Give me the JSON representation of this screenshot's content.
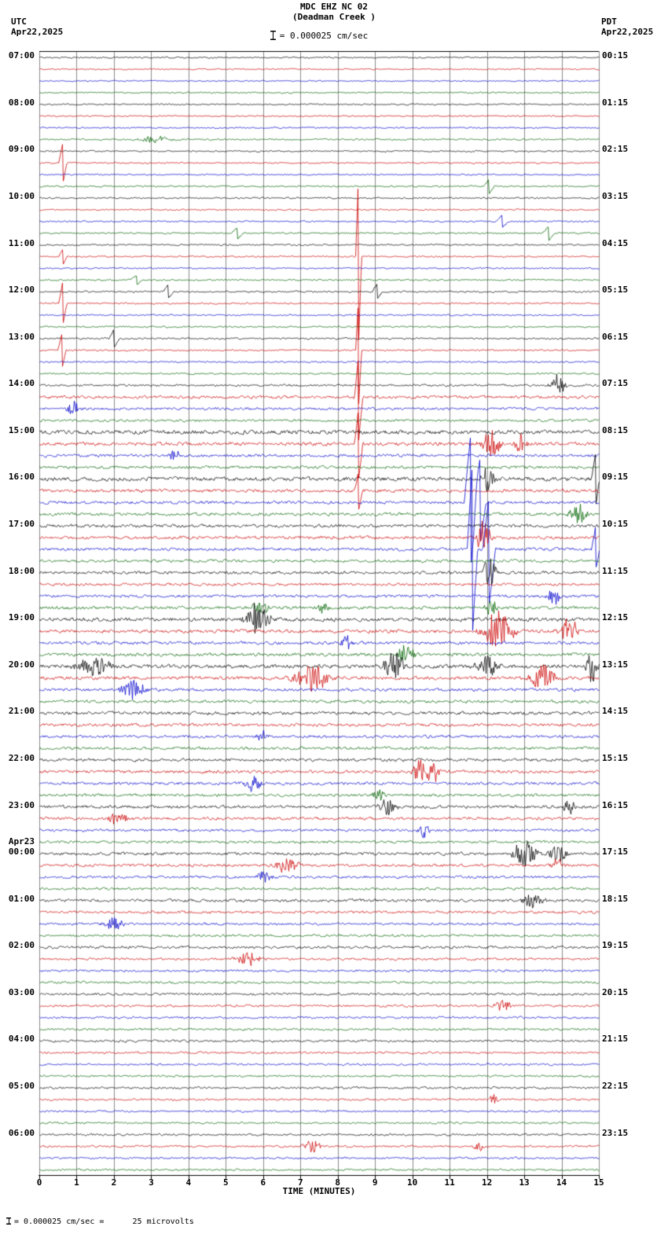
{
  "header": {
    "station": "MDC EHZ NC 02",
    "location": "(Deadman Creek )",
    "scale_label": "= 0.000025 cm/sec",
    "utc_label": "UTC",
    "utc_date": "Apr22,2025",
    "pdt_label": "PDT",
    "pdt_date": "Apr22,2025"
  },
  "footer": {
    "xaxis_title": "TIME (MINUTES)",
    "note": "= 0.000025 cm/sec =      25 microvolts"
  },
  "chart_data": {
    "type": "line",
    "title": "MDC EHZ NC 02 (Deadman Creek) helicorder",
    "xlabel": "TIME (MINUTES)",
    "xlim": [
      0,
      15
    ],
    "x_ticks": [
      "0",
      "1",
      "2",
      "3",
      "4",
      "5",
      "6",
      "7",
      "8",
      "9",
      "10",
      "11",
      "12",
      "13",
      "14",
      "15"
    ],
    "rows_per_hour": 4,
    "minutes_per_row": 15,
    "trace_colors": [
      "#000000",
      "#cc0000",
      "#0000cc",
      "#006400"
    ],
    "grid_color": "#8a8a8a",
    "hours": [
      {
        "utc": "07:00",
        "pdt": "00:15"
      },
      {
        "utc": "08:00",
        "pdt": "01:15"
      },
      {
        "utc": "09:00",
        "pdt": "02:15"
      },
      {
        "utc": "10:00",
        "pdt": "03:15"
      },
      {
        "utc": "11:00",
        "pdt": "04:15"
      },
      {
        "utc": "12:00",
        "pdt": "05:15"
      },
      {
        "utc": "13:00",
        "pdt": "06:15"
      },
      {
        "utc": "14:00",
        "pdt": "07:15"
      },
      {
        "utc": "15:00",
        "pdt": "08:15"
      },
      {
        "utc": "16:00",
        "pdt": "09:15"
      },
      {
        "utc": "17:00",
        "pdt": "10:15"
      },
      {
        "utc": "18:00",
        "pdt": "11:15"
      },
      {
        "utc": "19:00",
        "pdt": "12:15"
      },
      {
        "utc": "20:00",
        "pdt": "13:15"
      },
      {
        "utc": "21:00",
        "pdt": "14:15"
      },
      {
        "utc": "22:00",
        "pdt": "15:15"
      },
      {
        "utc": "23:00",
        "pdt": "16:15"
      },
      {
        "utc": "00:00",
        "pdt": "17:15",
        "date": "Apr23"
      },
      {
        "utc": "01:00",
        "pdt": "18:15"
      },
      {
        "utc": "02:00",
        "pdt": "19:15"
      },
      {
        "utc": "03:00",
        "pdt": "20:15"
      },
      {
        "utc": "04:00",
        "pdt": "21:15"
      },
      {
        "utc": "05:00",
        "pdt": "22:15"
      },
      {
        "utc": "06:00",
        "pdt": "23:15"
      }
    ],
    "row_amps": [
      1.2,
      1.1,
      1.1,
      1.2,
      1.2,
      1.1,
      1.1,
      1.4,
      1.3,
      1.2,
      1.2,
      1.3,
      1.3,
      1.2,
      1.3,
      1.3,
      1.3,
      1.2,
      1.2,
      1.3,
      1.4,
      1.3,
      1.2,
      1.3,
      1.4,
      1.3,
      1.3,
      1.4,
      1.8,
      2.5,
      2.2,
      2.0,
      3.5,
      3.0,
      2.5,
      2.5,
      3.5,
      2.8,
      2.6,
      2.6,
      2.8,
      2.6,
      2.6,
      2.4,
      2.6,
      2.4,
      2.4,
      2.6,
      3.2,
      3.0,
      2.6,
      2.8,
      3.2,
      3.0,
      2.6,
      2.6,
      2.8,
      2.6,
      2.4,
      2.4,
      2.6,
      2.6,
      2.4,
      2.4,
      2.6,
      2.4,
      2.2,
      2.2,
      2.6,
      2.4,
      2.2,
      2.2,
      2.4,
      2.2,
      2.0,
      2.0,
      2.2,
      2.0,
      1.9,
      1.9,
      2.0,
      1.9,
      1.8,
      1.8,
      1.9,
      1.8,
      1.7,
      1.7,
      1.8,
      1.7,
      1.7,
      1.6,
      1.8,
      1.7,
      1.6,
      1.6
    ],
    "events": [
      [
        7,
        3.15,
        6,
        0.25
      ],
      [
        9,
        0.62,
        26,
        0.03
      ],
      [
        11,
        12.05,
        9,
        0.04
      ],
      [
        14,
        12.4,
        8,
        0.05
      ],
      [
        15,
        5.3,
        7,
        0.05
      ],
      [
        15,
        13.65,
        9,
        0.05
      ],
      [
        17,
        0.62,
        10,
        0.03
      ],
      [
        17,
        8.55,
        110,
        0.02
      ],
      [
        19,
        2.6,
        6,
        0.05
      ],
      [
        20,
        3.45,
        9,
        0.04
      ],
      [
        20,
        9.05,
        10,
        0.04
      ],
      [
        21,
        0.62,
        28,
        0.03
      ],
      [
        24,
        2.0,
        12,
        0.04
      ],
      [
        25,
        0.6,
        22,
        0.03
      ],
      [
        25,
        8.55,
        70,
        0.02
      ],
      [
        28,
        13.9,
        14,
        0.12
      ],
      [
        29,
        8.55,
        55,
        0.03
      ],
      [
        30,
        0.9,
        10,
        0.12
      ],
      [
        33,
        8.55,
        45,
        0.03
      ],
      [
        33,
        12.1,
        22,
        0.15
      ],
      [
        33,
        12.9,
        14,
        0.1
      ],
      [
        34,
        3.6,
        9,
        0.08
      ],
      [
        36,
        12.0,
        16,
        0.12
      ],
      [
        36,
        14.9,
        35,
        0.03
      ],
      [
        37,
        8.55,
        25,
        0.03
      ],
      [
        38,
        11.55,
        85,
        0.05
      ],
      [
        38,
        11.8,
        55,
        0.05
      ],
      [
        39,
        14.45,
        14,
        0.15
      ],
      [
        41,
        11.9,
        35,
        0.1
      ],
      [
        42,
        11.6,
        110,
        0.04
      ],
      [
        42,
        12.05,
        70,
        0.05
      ],
      [
        42,
        14.9,
        28,
        0.03
      ],
      [
        44,
        12.05,
        22,
        0.12
      ],
      [
        46,
        13.8,
        13,
        0.12
      ],
      [
        47,
        5.9,
        11,
        0.15
      ],
      [
        47,
        7.6,
        9,
        0.1
      ],
      [
        47,
        12.1,
        11,
        0.1
      ],
      [
        48,
        5.85,
        22,
        0.2
      ],
      [
        49,
        12.3,
        28,
        0.25
      ],
      [
        49,
        14.2,
        18,
        0.15
      ],
      [
        50,
        8.2,
        10,
        0.1
      ],
      [
        51,
        9.8,
        13,
        0.15
      ],
      [
        52,
        1.5,
        13,
        0.3
      ],
      [
        52,
        9.5,
        18,
        0.2
      ],
      [
        52,
        12.0,
        14,
        0.2
      ],
      [
        52,
        14.8,
        22,
        0.1
      ],
      [
        53,
        7.3,
        18,
        0.3
      ],
      [
        53,
        13.5,
        18,
        0.2
      ],
      [
        54,
        2.5,
        13,
        0.2
      ],
      [
        58,
        6.0,
        8,
        0.1
      ],
      [
        61,
        10.2,
        16,
        0.15
      ],
      [
        61,
        10.55,
        14,
        0.1
      ],
      [
        62,
        5.7,
        11,
        0.15
      ],
      [
        63,
        9.1,
        9,
        0.1
      ],
      [
        64,
        9.3,
        11,
        0.15
      ],
      [
        64,
        14.2,
        13,
        0.1
      ],
      [
        65,
        2.1,
        9,
        0.2
      ],
      [
        66,
        10.3,
        9,
        0.1
      ],
      [
        68,
        13.0,
        18,
        0.2
      ],
      [
        68,
        13.9,
        11,
        0.15
      ],
      [
        69,
        6.6,
        11,
        0.2
      ],
      [
        69,
        13.9,
        11,
        0.1
      ],
      [
        70,
        6.0,
        8,
        0.15
      ],
      [
        72,
        13.2,
        9,
        0.2
      ],
      [
        74,
        2.0,
        9,
        0.15
      ],
      [
        77,
        5.6,
        9,
        0.2
      ],
      [
        81,
        12.4,
        7,
        0.15
      ],
      [
        89,
        12.2,
        7,
        0.1
      ],
      [
        93,
        7.3,
        9,
        0.15
      ],
      [
        93,
        11.8,
        6,
        0.1
      ]
    ]
  }
}
